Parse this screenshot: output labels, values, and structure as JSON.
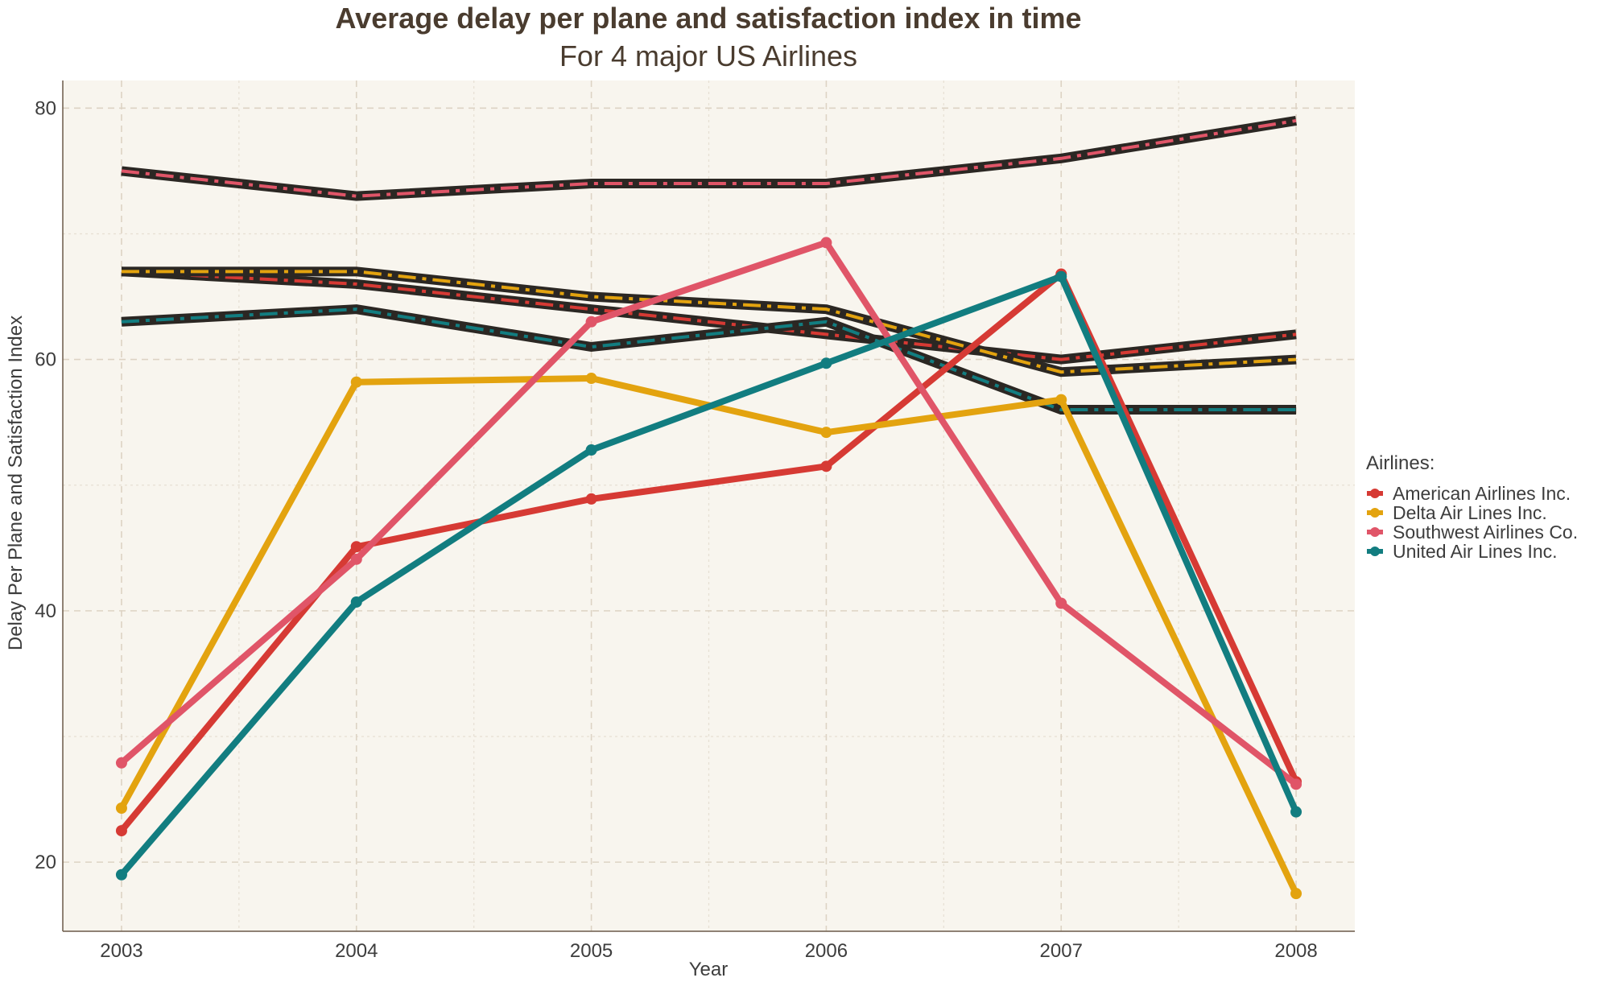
{
  "chart_data": {
    "type": "line",
    "title": "Average delay per plane and satisfaction index in time",
    "subtitle": "For 4 major US Airlines",
    "xlabel": "Year",
    "ylabel": "Delay Per Plane and Satisfaction Index",
    "x": [
      2003,
      2004,
      2005,
      2006,
      2007,
      2008
    ],
    "x_tick_labels": [
      "2003",
      "2004",
      "2005",
      "2006",
      "2007",
      "2008"
    ],
    "xlim": [
      2002.75,
      2008.25
    ],
    "ylim": [
      14.5,
      82.2
    ],
    "y_ticks": [
      20,
      40,
      60,
      80
    ],
    "grid": true,
    "background": "#f8f5ee",
    "legend": {
      "title": "Airlines:",
      "placement": "right"
    },
    "series": [
      {
        "name": "American Airlines Inc.",
        "color": "#d63a34",
        "delay": [
          22.5,
          45.1,
          48.9,
          51.5,
          66.8,
          26.4
        ],
        "satisfaction": [
          67,
          66,
          64,
          62,
          60,
          62
        ]
      },
      {
        "name": "Delta Air Lines Inc.",
        "color": "#e3a30f",
        "delay": [
          24.3,
          58.2,
          58.5,
          54.2,
          56.8,
          17.5
        ],
        "satisfaction": [
          67,
          67,
          65,
          64,
          59,
          60
        ]
      },
      {
        "name": "Southwest Airlines Co.",
        "color": "#e05568",
        "delay": [
          27.9,
          44.1,
          63.0,
          69.3,
          40.6,
          26.2
        ],
        "satisfaction": [
          75,
          73,
          74,
          74,
          76,
          79
        ]
      },
      {
        "name": "United Air Lines Inc.",
        "color": "#127d80",
        "delay": [
          19.0,
          40.7,
          52.8,
          59.7,
          66.6,
          24.0
        ],
        "satisfaction": [
          63,
          64,
          61,
          63,
          56,
          56
        ]
      }
    ]
  }
}
